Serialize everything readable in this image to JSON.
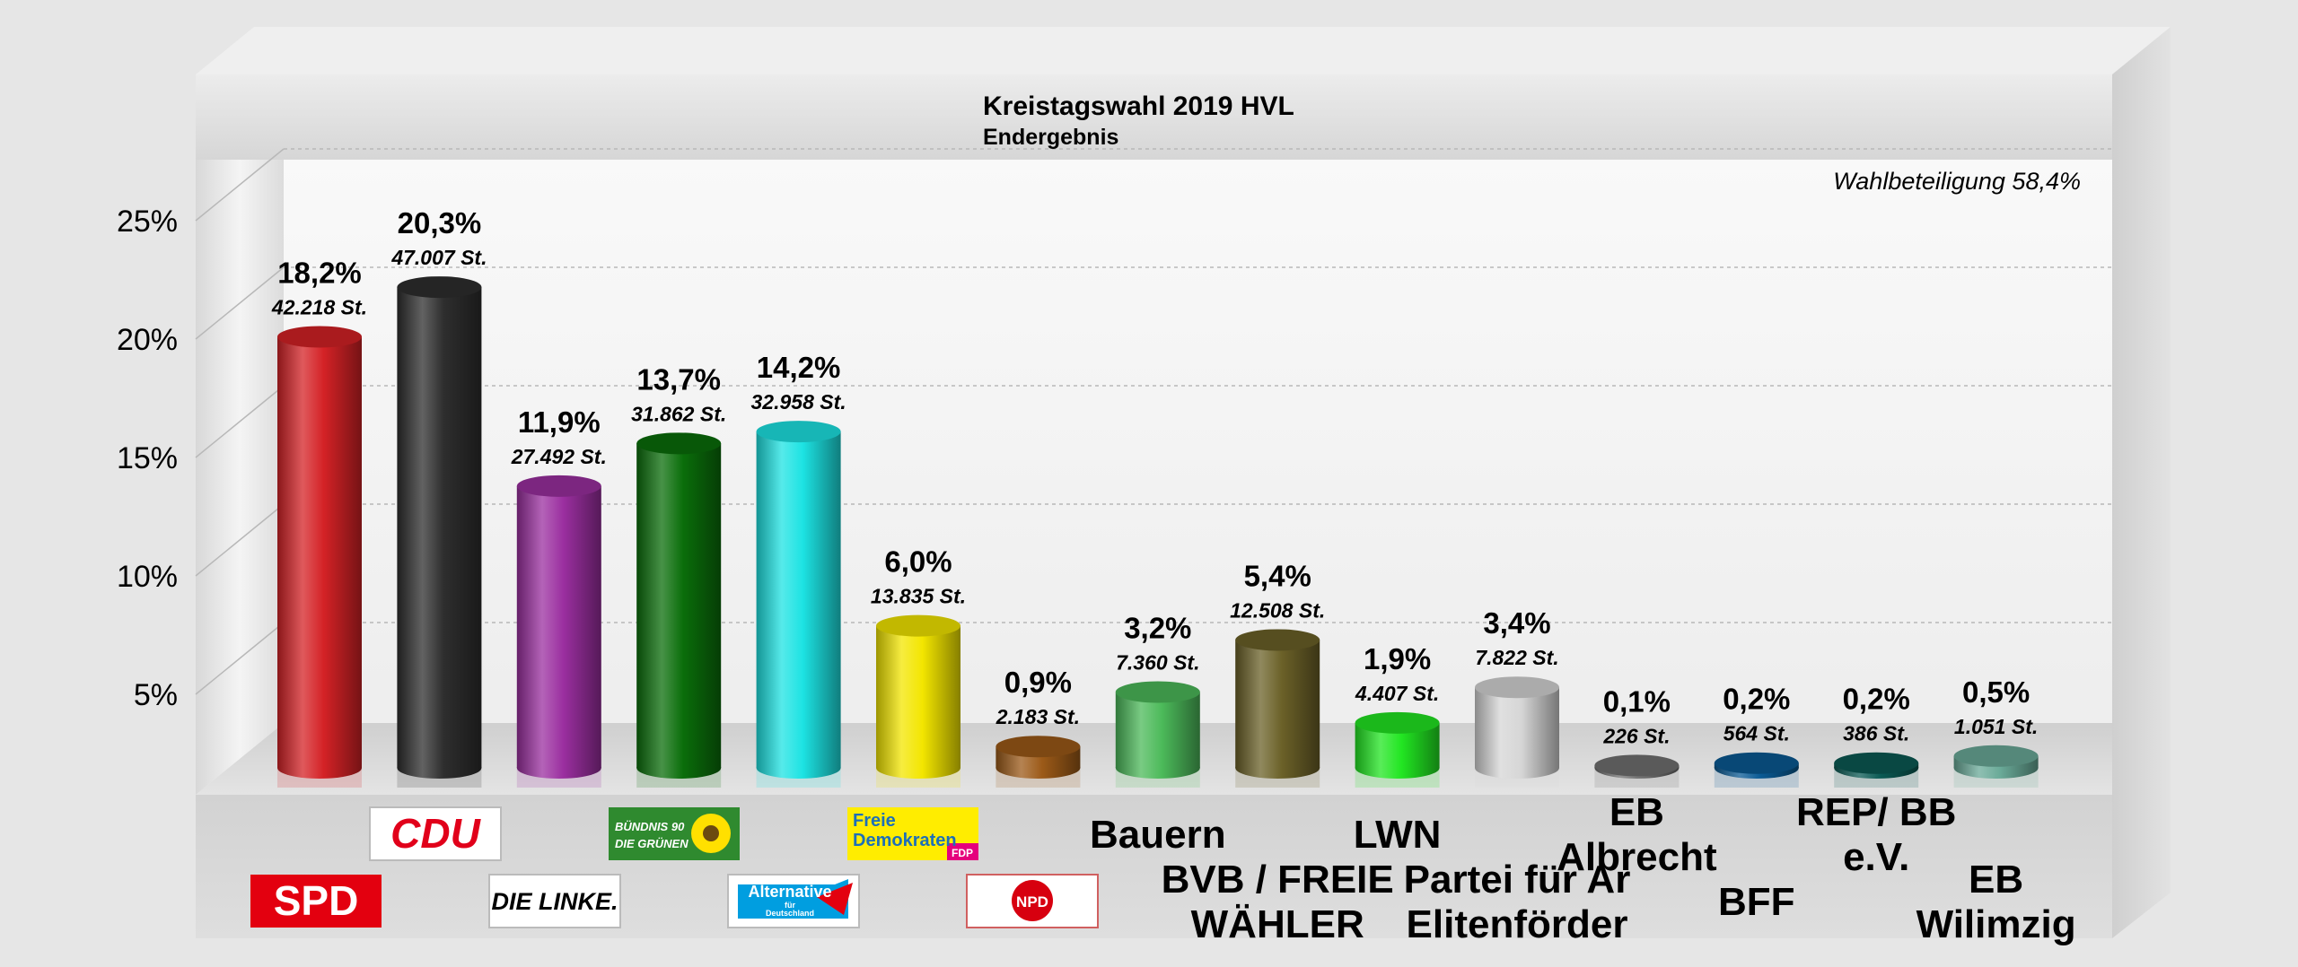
{
  "chart_data": {
    "type": "bar",
    "title": "Kreistagswahl 2019 HVL",
    "subtitle": "Endergebnis",
    "annotation": "Wahlbeteiligung 58,4%",
    "ylim": [
      0,
      25
    ],
    "yticks": [
      "5%",
      "10%",
      "15%",
      "20%",
      "25%"
    ],
    "ytick_values": [
      5,
      10,
      15,
      20,
      25
    ],
    "grid": true,
    "categories": [
      "SPD",
      "CDU",
      "DIE LINKE",
      "BÜNDNIS 90 / DIE GRÜNEN",
      "AfD",
      "FDP",
      "NPD",
      "Bauern",
      "BVB / FREIE WÄHLER",
      "LWN",
      "Partei für Ar Elitenförder",
      "EB Albrecht",
      "BFF",
      "REP/ BB e.V.",
      "EB Wilimzig"
    ],
    "values": [
      18.2,
      20.3,
      11.9,
      13.7,
      14.2,
      6.0,
      0.9,
      3.2,
      5.4,
      1.9,
      3.4,
      0.1,
      0.2,
      0.2,
      0.5
    ],
    "value_labels": [
      "18,2%",
      "20,3%",
      "11,9%",
      "13,7%",
      "14,2%",
      "6,0%",
      "0,9%",
      "3,2%",
      "5,4%",
      "1,9%",
      "3,4%",
      "0,1%",
      "0,2%",
      "0,2%",
      "0,5%"
    ],
    "votes": [
      42218,
      47007,
      27492,
      31862,
      32958,
      13835,
      2183,
      7360,
      12508,
      4407,
      7822,
      226,
      564,
      386,
      1051
    ],
    "vote_labels": [
      "42.218 St.",
      "47.007 St.",
      "27.492 St.",
      "31.862 St.",
      "32.958 St.",
      "13.835 St.",
      "2.183 St.",
      "7.360 St.",
      "12.508 St.",
      "4.407 St.",
      "7.822 St.",
      "226 St.",
      "564 St.",
      "386 St.",
      "1.051 St."
    ],
    "colors": [
      "#d42226",
      "#2e2e2e",
      "#9b2fa0",
      "#0a6e0a",
      "#1de3e3",
      "#f3e600",
      "#9c5a18",
      "#4cba5a",
      "#6b6128",
      "#22e622",
      "#d6d6d6",
      "#707070",
      "#0a5a94",
      "#0b5a54",
      "#6aaa98"
    ],
    "text_labels": [
      "",
      "",
      "",
      "",
      "",
      "",
      "",
      "Bauern",
      "BVB / FREIE\nWÄHLER",
      "LWN",
      "Partei für Ar\nElitenförder",
      "EB\nAlbrecht",
      "BFF",
      "REP/ BB\ne.V.",
      "EB\nWilimzig"
    ],
    "logos": {
      "SPD": "SPD",
      "CDU": "CDU",
      "DIE LINKE": "DIE LINKE.",
      "GRUENE_line1": "BÜNDNIS 90",
      "GRUENE_line2": "DIE GRÜNEN",
      "AfD_line1": "Alternative",
      "AfD_line2": "für",
      "AfD_line3": "Deutschland",
      "FDP_line1": "Freie",
      "FDP_line2": "Demokraten",
      "FDP_line3": "FDP",
      "NPD": "NPD"
    }
  }
}
